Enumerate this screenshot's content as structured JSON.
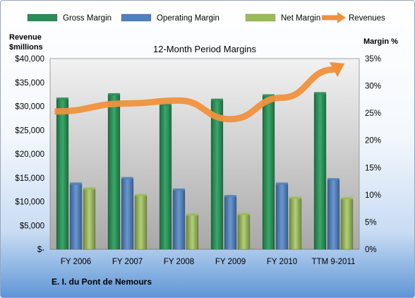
{
  "legend": {
    "items": [
      {
        "label": "Gross Margin",
        "color": "#2e8b57",
        "kind": "bar"
      },
      {
        "label": "Operating Margin",
        "color": "#4f81bd",
        "kind": "bar"
      },
      {
        "label": "Net Margin",
        "color": "#9bbb59",
        "kind": "bar"
      },
      {
        "label": "Revenues",
        "color": "#f0913c",
        "kind": "arrow"
      }
    ]
  },
  "company": "E. I. du Pont de Nemours",
  "chart_data": {
    "type": "bar",
    "title": "12-Month Period Margins",
    "ylabel_left": "Revenue $millions",
    "ylabel_left_lines": [
      "Revenue",
      "$millions"
    ],
    "ylabel_right": "Margin %",
    "categories": [
      "FY 2006",
      "FY 2007",
      "FY 2008",
      "FY 2009",
      "FY 2010",
      "TTM 9-2011"
    ],
    "ylim_left": [
      0,
      40000
    ],
    "ylim_right": [
      0,
      35
    ],
    "left_ticks": [
      "$-",
      "$5,000",
      "$10,000",
      "$15,000",
      "$20,000",
      "$25,000",
      "$30,000",
      "$35,000",
      "$40,000"
    ],
    "right_ticks": [
      "0%",
      "5%",
      "10%",
      "15%",
      "20%",
      "25%",
      "30%",
      "35%"
    ],
    "series": [
      {
        "name": "Gross Margin",
        "axis": "right",
        "type": "bar",
        "color": "#2e8b57",
        "values": [
          27.6,
          28.4,
          26.5,
          27.4,
          28.2,
          28.6
        ]
      },
      {
        "name": "Operating Margin",
        "axis": "right",
        "type": "bar",
        "color": "#4f81bd",
        "values": [
          12.0,
          13.0,
          10.9,
          9.7,
          12.0,
          12.8
        ]
      },
      {
        "name": "Net Margin",
        "axis": "right",
        "type": "bar",
        "color": "#9bbb59",
        "values": [
          11.1,
          9.9,
          6.3,
          6.4,
          9.4,
          9.3
        ]
      },
      {
        "name": "Revenues",
        "axis": "left",
        "type": "line-arrow",
        "color": "#f0913c",
        "values": [
          28900,
          30600,
          31200,
          27300,
          31800,
          37700
        ]
      }
    ],
    "grid": false,
    "legend_position": "top"
  }
}
